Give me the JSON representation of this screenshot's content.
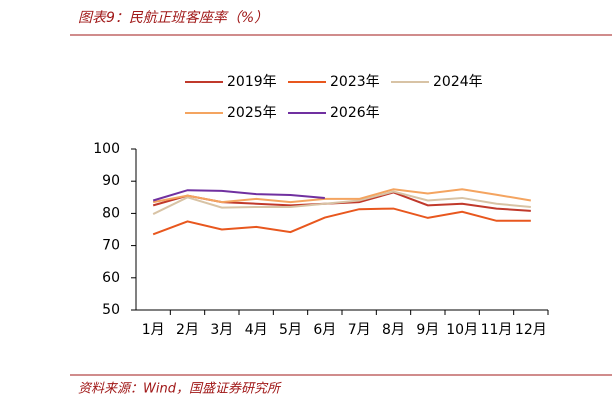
{
  "chart_data": {
    "type": "line",
    "title": "图表9：民航正班客座率（%）",
    "source": "资料来源：Wind，国盛证券研究所",
    "categories": [
      "1月",
      "2月",
      "3月",
      "4月",
      "5月",
      "6月",
      "7月",
      "8月",
      "9月",
      "10月",
      "11月",
      "12月"
    ],
    "series": [
      {
        "name": "2019年",
        "color": "#c0392b",
        "values": [
          82.5,
          85.5,
          83.5,
          83,
          82.5,
          83,
          83.5,
          86.5,
          82.5,
          83,
          81.5,
          80.8
        ]
      },
      {
        "name": "2023年",
        "color": "#e8571e",
        "values": [
          73.5,
          77.5,
          75,
          75.8,
          74.2,
          78.7,
          81.3,
          81.5,
          78.6,
          80.5,
          77.7,
          77.7
        ]
      },
      {
        "name": "2024年",
        "color": "#d8c3a5",
        "values": [
          79.8,
          85,
          81.8,
          82,
          82,
          83,
          84,
          86.8,
          84,
          84.8,
          83,
          82
        ]
      },
      {
        "name": "2025年",
        "color": "#f4a460",
        "values": [
          83.5,
          85.5,
          83.5,
          84.5,
          83.5,
          84.5,
          84.5,
          87.5,
          86.2,
          87.5,
          85.8,
          84
        ]
      },
      {
        "name": "2026年",
        "color": "#7030a0",
        "values": [
          84,
          87.2,
          87,
          86,
          85.7,
          84.8,
          null,
          null,
          null,
          null,
          null,
          null
        ]
      }
    ],
    "ylim": [
      50,
      100
    ],
    "yticks": [
      50,
      60,
      70,
      80,
      90,
      100
    ],
    "grid": false
  }
}
